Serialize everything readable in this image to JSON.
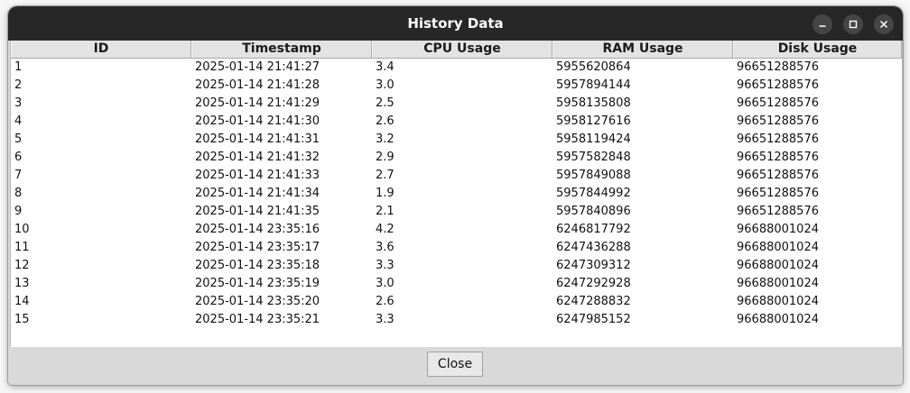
{
  "window": {
    "title": "History Data"
  },
  "titlebar_buttons": {
    "minimize_icon": "minimize-icon",
    "maximize_icon": "maximize-icon",
    "close_icon": "close-icon"
  },
  "table": {
    "columns": [
      "ID",
      "Timestamp",
      "CPU Usage",
      "RAM Usage",
      "Disk Usage"
    ],
    "rows": [
      [
        "1",
        "2025-01-14 21:41:27",
        "3.4",
        "5955620864",
        "96651288576"
      ],
      [
        "2",
        "2025-01-14 21:41:28",
        "3.0",
        "5957894144",
        "96651288576"
      ],
      [
        "3",
        "2025-01-14 21:41:29",
        "2.5",
        "5958135808",
        "96651288576"
      ],
      [
        "4",
        "2025-01-14 21:41:30",
        "2.6",
        "5958127616",
        "96651288576"
      ],
      [
        "5",
        "2025-01-14 21:41:31",
        "3.2",
        "5958119424",
        "96651288576"
      ],
      [
        "6",
        "2025-01-14 21:41:32",
        "2.9",
        "5957582848",
        "96651288576"
      ],
      [
        "7",
        "2025-01-14 21:41:33",
        "2.7",
        "5957849088",
        "96651288576"
      ],
      [
        "8",
        "2025-01-14 21:41:34",
        "1.9",
        "5957844992",
        "96651288576"
      ],
      [
        "9",
        "2025-01-14 21:41:35",
        "2.1",
        "5957840896",
        "96651288576"
      ],
      [
        "10",
        "2025-01-14 23:35:16",
        "4.2",
        "6246817792",
        "96688001024"
      ],
      [
        "11",
        "2025-01-14 23:35:17",
        "3.6",
        "6247436288",
        "96688001024"
      ],
      [
        "12",
        "2025-01-14 23:35:18",
        "3.3",
        "6247309312",
        "96688001024"
      ],
      [
        "13",
        "2025-01-14 23:35:19",
        "3.0",
        "6247292928",
        "96688001024"
      ],
      [
        "14",
        "2025-01-14 23:35:20",
        "2.6",
        "6247288832",
        "96688001024"
      ],
      [
        "15",
        "2025-01-14 23:35:21",
        "3.3",
        "6247985152",
        "96688001024"
      ]
    ]
  },
  "footer": {
    "close_label": "Close"
  },
  "colors": {
    "titlebar": "#272727",
    "window_bg": "#d9d9d9",
    "table_bg": "#ffffff",
    "header_bg": "#e3e3e3"
  }
}
